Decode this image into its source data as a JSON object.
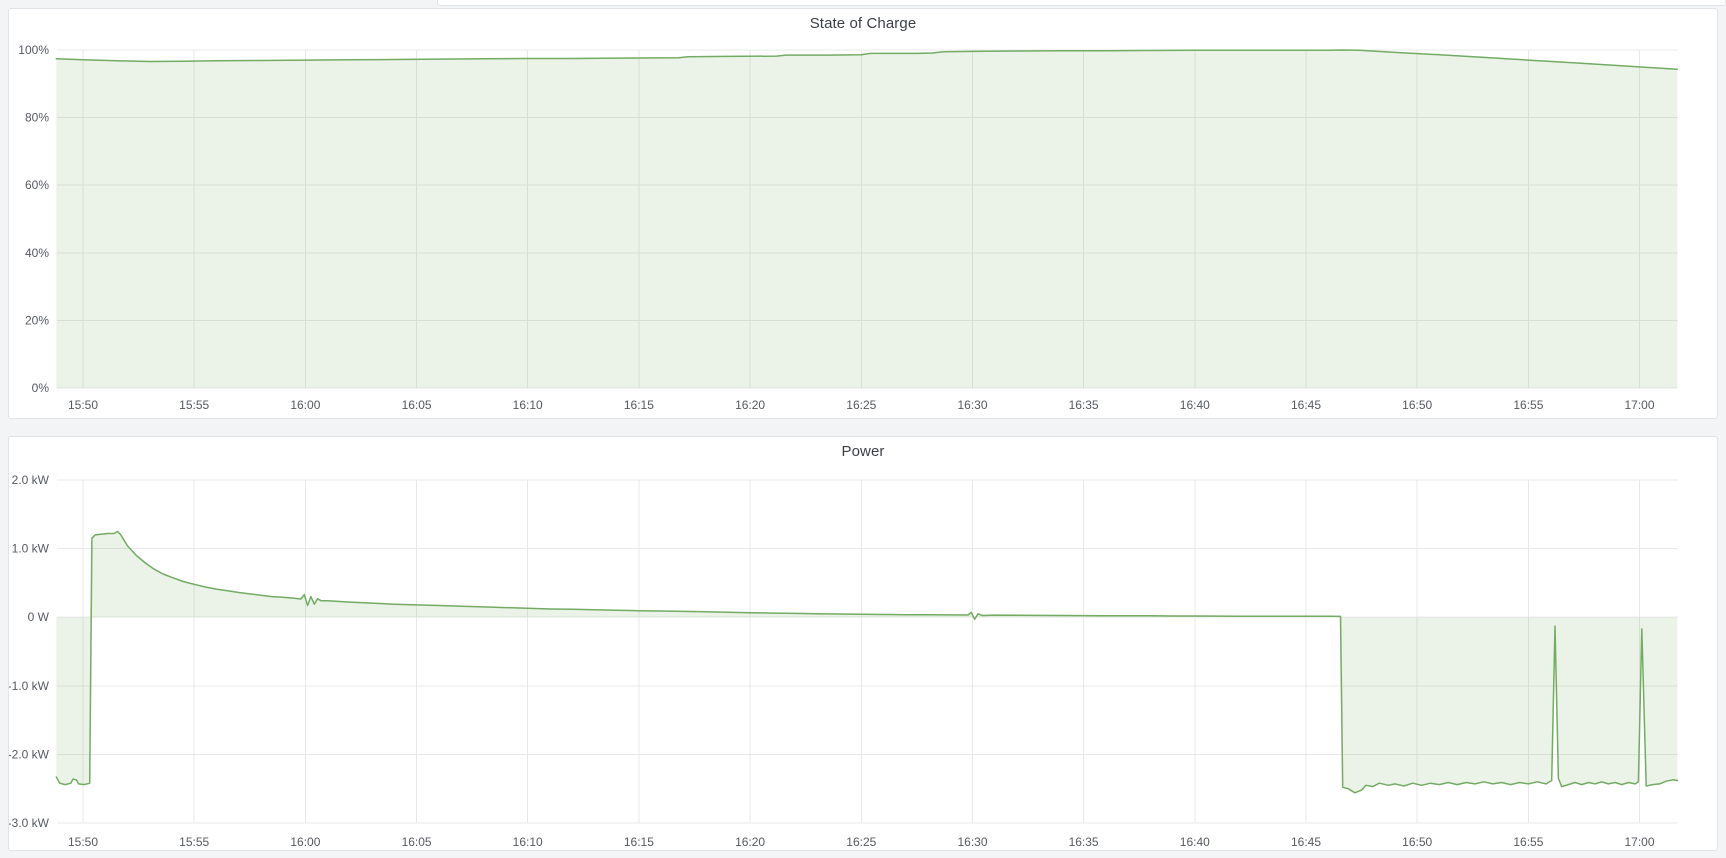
{
  "page": {
    "background_color": "#f2f4f5",
    "panel_background": "#ffffff",
    "panel_border_color": "#e0e4e8"
  },
  "colors": {
    "series_green": "#73ab63",
    "fill_green": "rgba(115,171,99,0.14)",
    "grid": "#e8e8e8",
    "axis_text": "#55595f",
    "title_text": "#3c4046"
  },
  "chart_data": [
    {
      "type": "area",
      "title": "State of Charge",
      "legend": "none",
      "grid": true,
      "x_tick_labels": [
        "15:50",
        "15:55",
        "16:00",
        "16:05",
        "16:10",
        "16:15",
        "16:20",
        "16:25",
        "16:30",
        "16:35",
        "16:40",
        "16:45",
        "16:50",
        "16:55",
        "17:00"
      ],
      "x_tick_values": [
        0,
        5,
        10,
        15,
        20,
        25,
        30,
        35,
        40,
        45,
        50,
        55,
        60,
        65,
        70
      ],
      "xlim": [
        -1.17,
        71.73
      ],
      "y_tick_labels": [
        "100%",
        "80%",
        "60%",
        "40%",
        "20%",
        "0%"
      ],
      "y_tick_values": [
        100,
        80,
        60,
        40,
        20,
        0
      ],
      "ylim": [
        0,
        100
      ],
      "series": [
        {
          "name": "State of Charge",
          "unit": "%",
          "points": [
            [
              -1.2,
              97.4
            ],
            [
              0,
              97.1
            ],
            [
              1.5,
              96.8
            ],
            [
              3,
              96.6
            ],
            [
              4.5,
              96.7
            ],
            [
              6,
              96.8
            ],
            [
              8,
              96.9
            ],
            [
              10,
              97.0
            ],
            [
              12,
              97.1
            ],
            [
              14,
              97.2
            ],
            [
              16,
              97.3
            ],
            [
              18,
              97.4
            ],
            [
              20,
              97.5
            ],
            [
              22,
              97.5
            ],
            [
              24,
              97.6
            ],
            [
              26.8,
              97.7
            ],
            [
              27.2,
              98.0
            ],
            [
              29,
              98.1
            ],
            [
              31.2,
              98.2
            ],
            [
              31.6,
              98.5
            ],
            [
              33.5,
              98.5
            ],
            [
              35.0,
              98.6
            ],
            [
              35.4,
              99.0
            ],
            [
              37.5,
              99.0
            ],
            [
              38.2,
              99.1
            ],
            [
              38.7,
              99.5
            ],
            [
              40,
              99.6
            ],
            [
              42,
              99.7
            ],
            [
              44,
              99.75
            ],
            [
              46,
              99.8
            ],
            [
              48,
              99.85
            ],
            [
              50,
              99.9
            ],
            [
              53,
              99.9
            ],
            [
              56,
              99.95
            ],
            [
              56.6,
              100
            ],
            [
              57.4,
              99.9
            ],
            [
              59,
              99.3
            ],
            [
              61,
              98.6
            ],
            [
              63,
              97.8
            ],
            [
              65,
              97.0
            ],
            [
              67,
              96.2
            ],
            [
              69,
              95.4
            ],
            [
              70.5,
              94.8
            ],
            [
              71.7,
              94.3
            ]
          ]
        }
      ]
    },
    {
      "type": "area",
      "title": "Power",
      "legend": "none",
      "grid": true,
      "x_tick_labels": [
        "15:50",
        "15:55",
        "16:00",
        "16:05",
        "16:10",
        "16:15",
        "16:20",
        "16:25",
        "16:30",
        "16:35",
        "16:40",
        "16:45",
        "16:50",
        "16:55",
        "17:00"
      ],
      "x_tick_values": [
        0,
        5,
        10,
        15,
        20,
        25,
        30,
        35,
        40,
        45,
        50,
        55,
        60,
        65,
        70
      ],
      "xlim": [
        -1.17,
        71.73
      ],
      "y_tick_labels": [
        "2.0 kW",
        "1.0 kW",
        "0 W",
        "-1.0 kW",
        "-2.0 kW",
        "-3.0 kW"
      ],
      "y_tick_values": [
        2,
        1,
        0,
        -1,
        -2,
        -3
      ],
      "ylim": [
        -3,
        2
      ],
      "series": [
        {
          "name": "Power",
          "unit": "kW",
          "points": [
            [
              -1.2,
              -2.33
            ],
            [
              -1.05,
              -2.42
            ],
            [
              -0.8,
              -2.44
            ],
            [
              -0.55,
              -2.42
            ],
            [
              -0.45,
              -2.36
            ],
            [
              -0.3,
              -2.37
            ],
            [
              -0.2,
              -2.43
            ],
            [
              0.05,
              -2.44
            ],
            [
              0.3,
              -2.42
            ],
            [
              0.4,
              1.15
            ],
            [
              0.55,
              1.2
            ],
            [
              0.8,
              1.21
            ],
            [
              1.1,
              1.22
            ],
            [
              1.4,
              1.22
            ],
            [
              1.55,
              1.25
            ],
            [
              1.7,
              1.2
            ],
            [
              2,
              1.04
            ],
            [
              2.4,
              0.9
            ],
            [
              2.8,
              0.79
            ],
            [
              3.2,
              0.7
            ],
            [
              3.6,
              0.63
            ],
            [
              4,
              0.58
            ],
            [
              4.5,
              0.52
            ],
            [
              5,
              0.48
            ],
            [
              5.5,
              0.44
            ],
            [
              6,
              0.41
            ],
            [
              6.5,
              0.385
            ],
            [
              7,
              0.36
            ],
            [
              7.5,
              0.34
            ],
            [
              8,
              0.32
            ],
            [
              8.5,
              0.3
            ],
            [
              9,
              0.29
            ],
            [
              9.5,
              0.275
            ],
            [
              9.8,
              0.265
            ],
            [
              9.95,
              0.33
            ],
            [
              10.1,
              0.17
            ],
            [
              10.25,
              0.3
            ],
            [
              10.4,
              0.19
            ],
            [
              10.55,
              0.27
            ],
            [
              10.7,
              0.24
            ],
            [
              11,
              0.24
            ],
            [
              12,
              0.22
            ],
            [
              13,
              0.205
            ],
            [
              14,
              0.19
            ],
            [
              15,
              0.18
            ],
            [
              16,
              0.17
            ],
            [
              17,
              0.16
            ],
            [
              18,
              0.15
            ],
            [
              19,
              0.14
            ],
            [
              20,
              0.13
            ],
            [
              21,
              0.12
            ],
            [
              22,
              0.115
            ],
            [
              23,
              0.11
            ],
            [
              24,
              0.1
            ],
            [
              25,
              0.095
            ],
            [
              26,
              0.09
            ],
            [
              27,
              0.085
            ],
            [
              28,
              0.08
            ],
            [
              29,
              0.072
            ],
            [
              30,
              0.066
            ],
            [
              31,
              0.06
            ],
            [
              32,
              0.055
            ],
            [
              33,
              0.05
            ],
            [
              34,
              0.046
            ],
            [
              35,
              0.043
            ],
            [
              36,
              0.04
            ],
            [
              37,
              0.037
            ],
            [
              38,
              0.035
            ],
            [
              39,
              0.033
            ],
            [
              39.8,
              0.032
            ],
            [
              39.95,
              0.07
            ],
            [
              40.1,
              -0.03
            ],
            [
              40.25,
              0.05
            ],
            [
              40.45,
              0.025
            ],
            [
              41,
              0.03
            ],
            [
              42,
              0.028
            ],
            [
              43,
              0.026
            ],
            [
              44,
              0.025
            ],
            [
              45,
              0.023
            ],
            [
              46,
              0.022
            ],
            [
              47,
              0.02
            ],
            [
              48,
              0.02
            ],
            [
              49,
              0.018
            ],
            [
              50,
              0.017
            ],
            [
              51,
              0.016
            ],
            [
              52,
              0.015
            ],
            [
              53,
              0.015
            ],
            [
              54,
              0.014
            ],
            [
              55,
              0.013
            ],
            [
              56,
              0.013
            ],
            [
              56.55,
              0.012
            ],
            [
              56.65,
              -2.48
            ],
            [
              56.9,
              -2.5
            ],
            [
              57.2,
              -2.56
            ],
            [
              57.5,
              -2.52
            ],
            [
              57.7,
              -2.45
            ],
            [
              58,
              -2.47
            ],
            [
              58.3,
              -2.42
            ],
            [
              58.7,
              -2.45
            ],
            [
              59,
              -2.43
            ],
            [
              59.4,
              -2.46
            ],
            [
              59.8,
              -2.42
            ],
            [
              60.2,
              -2.45
            ],
            [
              60.6,
              -2.42
            ],
            [
              61,
              -2.44
            ],
            [
              61.4,
              -2.41
            ],
            [
              61.8,
              -2.44
            ],
            [
              62.2,
              -2.41
            ],
            [
              62.6,
              -2.43
            ],
            [
              63,
              -2.4
            ],
            [
              63.4,
              -2.43
            ],
            [
              63.8,
              -2.41
            ],
            [
              64.2,
              -2.44
            ],
            [
              64.6,
              -2.41
            ],
            [
              65,
              -2.43
            ],
            [
              65.4,
              -2.4
            ],
            [
              65.8,
              -2.43
            ],
            [
              66.05,
              -2.38
            ],
            [
              66.2,
              -0.13
            ],
            [
              66.35,
              -2.35
            ],
            [
              66.5,
              -2.47
            ],
            [
              66.8,
              -2.44
            ],
            [
              67.1,
              -2.41
            ],
            [
              67.4,
              -2.44
            ],
            [
              67.7,
              -2.41
            ],
            [
              68,
              -2.43
            ],
            [
              68.3,
              -2.4
            ],
            [
              68.6,
              -2.43
            ],
            [
              68.9,
              -2.41
            ],
            [
              69.2,
              -2.44
            ],
            [
              69.5,
              -2.41
            ],
            [
              69.8,
              -2.43
            ],
            [
              69.95,
              -2.4
            ],
            [
              70.1,
              -0.17
            ],
            [
              70.3,
              -2.46
            ],
            [
              70.6,
              -2.44
            ],
            [
              70.9,
              -2.43
            ],
            [
              71.2,
              -2.39
            ],
            [
              71.5,
              -2.37
            ],
            [
              71.7,
              -2.38
            ]
          ]
        }
      ]
    }
  ]
}
